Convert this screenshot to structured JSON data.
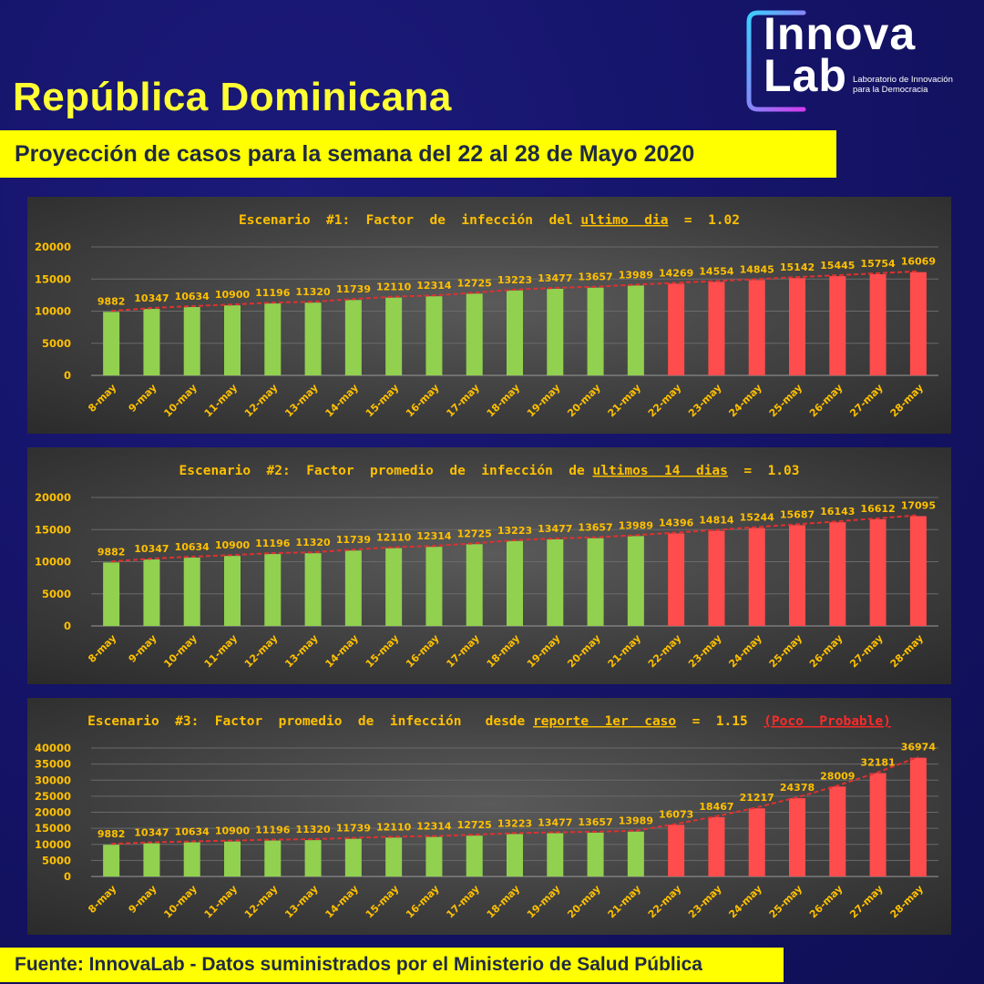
{
  "header": {
    "title": "República Dominicana",
    "subtitle": "Proyección de casos para la semana del 22 al 28 de Mayo 2020"
  },
  "logo": {
    "line1": "Innova",
    "line2": "Lab",
    "tagline1": "Laboratorio de Innovación",
    "tagline2": "para la Democracia"
  },
  "footer": {
    "text": "Fuente: InnovaLab - Datos suministrados por el Ministerio de Salud Pública"
  },
  "colors": {
    "observed": "#92d050",
    "projected": "#ff4d4d",
    "label": "#ffc000",
    "trend": "#e03030",
    "title_highlight": "#ffff00",
    "warning": "#ff2a2a"
  },
  "chart_data": [
    {
      "type": "bar",
      "title_parts": [
        "Escenario  #1:  Factor  de  infección  del ",
        "ultimo  dia",
        "  =  1.02"
      ],
      "title_underline_index": 1,
      "warning": "",
      "categories": [
        "8-may",
        "9-may",
        "10-may",
        "11-may",
        "12-may",
        "13-may",
        "14-may",
        "15-may",
        "16-may",
        "17-may",
        "18-may",
        "19-may",
        "20-may",
        "21-may",
        "22-may",
        "23-may",
        "24-may",
        "25-may",
        "26-may",
        "27-may",
        "28-may"
      ],
      "values": [
        9882,
        10347,
        10634,
        10900,
        11196,
        11320,
        11739,
        12110,
        12314,
        12725,
        13223,
        13477,
        13657,
        13989,
        14269,
        14554,
        14845,
        15142,
        15445,
        15754,
        16069
      ],
      "projected_from_index": 14,
      "ylim": [
        0,
        20000
      ],
      "yticks": [
        0,
        5000,
        10000,
        15000,
        20000
      ],
      "trendline": true,
      "grid": true
    },
    {
      "type": "bar",
      "title_parts": [
        "Escenario  #2:  Factor  promedio  de  infección  de ",
        "ultimos  14  dias",
        "  =  1.03"
      ],
      "title_underline_index": 1,
      "warning": "",
      "categories": [
        "8-may",
        "9-may",
        "10-may",
        "11-may",
        "12-may",
        "13-may",
        "14-may",
        "15-may",
        "16-may",
        "17-may",
        "18-may",
        "19-may",
        "20-may",
        "21-may",
        "22-may",
        "23-may",
        "24-may",
        "25-may",
        "26-may",
        "27-may",
        "28-may"
      ],
      "values": [
        9882,
        10347,
        10634,
        10900,
        11196,
        11320,
        11739,
        12110,
        12314,
        12725,
        13223,
        13477,
        13657,
        13989,
        14396,
        14814,
        15244,
        15687,
        16143,
        16612,
        17095
      ],
      "projected_from_index": 14,
      "ylim": [
        0,
        20000
      ],
      "yticks": [
        0,
        5000,
        10000,
        15000,
        20000
      ],
      "trendline": true,
      "grid": true
    },
    {
      "type": "bar",
      "title_parts": [
        "Escenario  #3:  Factor  promedio  de  infección   desde ",
        "reporte  1er  caso",
        "  =  1.15  "
      ],
      "title_underline_index": 1,
      "warning": "(Poco  Probable)",
      "categories": [
        "8-may",
        "9-may",
        "10-may",
        "11-may",
        "12-may",
        "13-may",
        "14-may",
        "15-may",
        "16-may",
        "17-may",
        "18-may",
        "19-may",
        "20-may",
        "21-may",
        "22-may",
        "23-may",
        "24-may",
        "25-may",
        "26-may",
        "27-may",
        "28-may"
      ],
      "values": [
        9882,
        10347,
        10634,
        10900,
        11196,
        11320,
        11739,
        12110,
        12314,
        12725,
        13223,
        13477,
        13657,
        13989,
        16073,
        18467,
        21217,
        24378,
        28009,
        32181,
        36974
      ],
      "projected_from_index": 14,
      "ylim": [
        0,
        40000
      ],
      "yticks": [
        0,
        5000,
        10000,
        15000,
        20000,
        25000,
        30000,
        35000,
        40000
      ],
      "trendline": true,
      "grid": true
    }
  ]
}
